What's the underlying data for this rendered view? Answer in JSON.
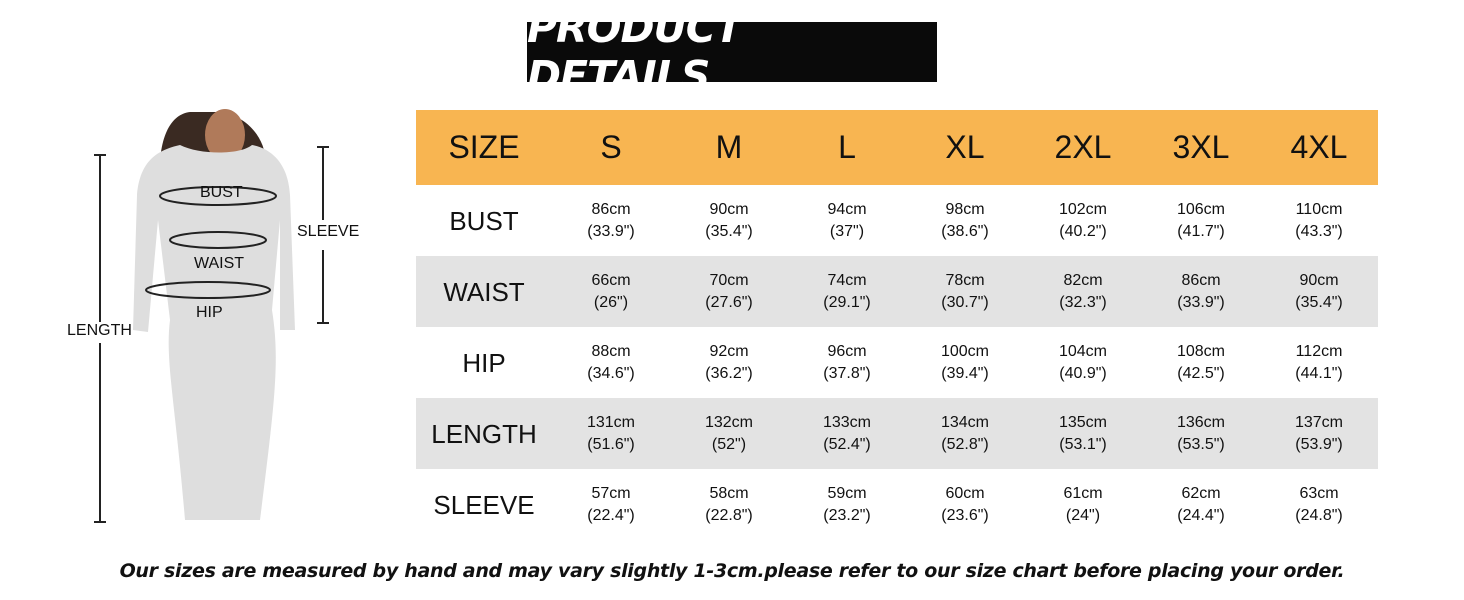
{
  "title": "PRODUCT DETAILS",
  "figure": {
    "labels": {
      "bust": "BUST",
      "waist": "WAIST",
      "hip": "HIP",
      "length": "LENGTH",
      "sleeve": "SLEEVE"
    }
  },
  "table": {
    "header": [
      "SIZE",
      "S",
      "M",
      "L",
      "XL",
      "2XL",
      "3XL",
      "4XL"
    ],
    "rows": [
      {
        "label": "BUST",
        "cells": [
          [
            "86cm",
            "(33.9\")"
          ],
          [
            "90cm",
            "(35.4\")"
          ],
          [
            "94cm",
            "(37\")"
          ],
          [
            "98cm",
            "(38.6\")"
          ],
          [
            "102cm",
            "(40.2\")"
          ],
          [
            "106cm",
            "(41.7\")"
          ],
          [
            "110cm",
            "(43.3\")"
          ]
        ]
      },
      {
        "label": "WAIST",
        "cells": [
          [
            "66cm",
            "(26\")"
          ],
          [
            "70cm",
            "(27.6\")"
          ],
          [
            "74cm",
            "(29.1\")"
          ],
          [
            "78cm",
            "(30.7\")"
          ],
          [
            "82cm",
            "(32.3\")"
          ],
          [
            "86cm",
            "(33.9\")"
          ],
          [
            "90cm",
            "(35.4\")"
          ]
        ]
      },
      {
        "label": "HIP",
        "cells": [
          [
            "88cm",
            "(34.6\")"
          ],
          [
            "92cm",
            "(36.2\")"
          ],
          [
            "96cm",
            "(37.8\")"
          ],
          [
            "100cm",
            "(39.4\")"
          ],
          [
            "104cm",
            "(40.9\")"
          ],
          [
            "108cm",
            "(42.5\")"
          ],
          [
            "112cm",
            "(44.1\")"
          ]
        ]
      },
      {
        "label": "LENGTH",
        "cells": [
          [
            "131cm",
            "(51.6\")"
          ],
          [
            "132cm",
            "(52\")"
          ],
          [
            "133cm",
            "(52.4\")"
          ],
          [
            "134cm",
            "(52.8\")"
          ],
          [
            "135cm",
            "(53.1\")"
          ],
          [
            "136cm",
            "(53.5\")"
          ],
          [
            "137cm",
            "(53.9\")"
          ]
        ]
      },
      {
        "label": "SLEEVE",
        "cells": [
          [
            "57cm",
            "(22.4\")"
          ],
          [
            "58cm",
            "(22.8\")"
          ],
          [
            "59cm",
            "(23.2\")"
          ],
          [
            "60cm",
            "(23.6\")"
          ],
          [
            "61cm",
            "(24\")"
          ],
          [
            "62cm",
            "(24.4\")"
          ],
          [
            "63cm",
            "(24.8\")"
          ]
        ]
      }
    ]
  },
  "colors": {
    "header": "#f8b551",
    "alt_row": "#e3e3e3",
    "title_bg": "#0a0a0a"
  },
  "footer": "Our sizes are measured by hand and may vary slightly 1-3cm.please refer to our size chart before placing your order."
}
